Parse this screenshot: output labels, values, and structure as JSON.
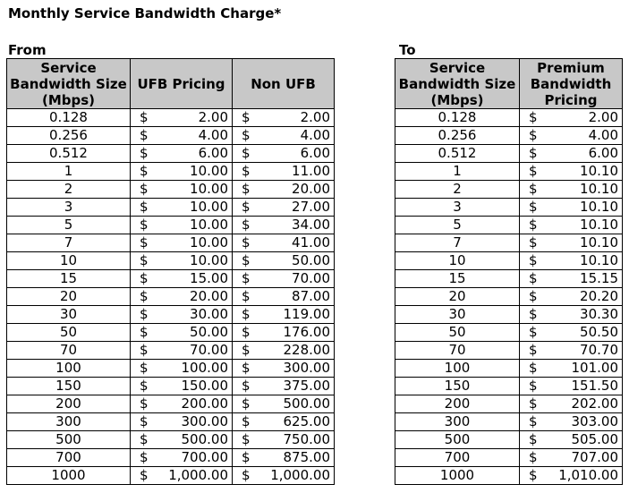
{
  "title": "Monthly Service Bandwidth Charge*",
  "currency_symbol": "$",
  "from": {
    "label": "From",
    "headers": [
      "Service Bandwidth Size (Mbps)",
      "UFB Pricing",
      "Non UFB"
    ],
    "rows": [
      [
        "0.128",
        "2.00",
        "2.00"
      ],
      [
        "0.256",
        "4.00",
        "4.00"
      ],
      [
        "0.512",
        "6.00",
        "6.00"
      ],
      [
        "1",
        "10.00",
        "11.00"
      ],
      [
        "2",
        "10.00",
        "20.00"
      ],
      [
        "3",
        "10.00",
        "27.00"
      ],
      [
        "5",
        "10.00",
        "34.00"
      ],
      [
        "7",
        "10.00",
        "41.00"
      ],
      [
        "10",
        "10.00",
        "50.00"
      ],
      [
        "15",
        "15.00",
        "70.00"
      ],
      [
        "20",
        "20.00",
        "87.00"
      ],
      [
        "30",
        "30.00",
        "119.00"
      ],
      [
        "50",
        "50.00",
        "176.00"
      ],
      [
        "70",
        "70.00",
        "228.00"
      ],
      [
        "100",
        "100.00",
        "300.00"
      ],
      [
        "150",
        "150.00",
        "375.00"
      ],
      [
        "200",
        "200.00",
        "500.00"
      ],
      [
        "300",
        "300.00",
        "625.00"
      ],
      [
        "500",
        "500.00",
        "750.00"
      ],
      [
        "700",
        "700.00",
        "875.00"
      ],
      [
        "1000",
        "1,000.00",
        "1,000.00"
      ]
    ]
  },
  "to": {
    "label": "To",
    "headers": [
      "Service Bandwidth Size (Mbps)",
      "Premium Bandwidth Pricing"
    ],
    "rows": [
      [
        "0.128",
        "2.00"
      ],
      [
        "0.256",
        "4.00"
      ],
      [
        "0.512",
        "6.00"
      ],
      [
        "1",
        "10.10"
      ],
      [
        "2",
        "10.10"
      ],
      [
        "3",
        "10.10"
      ],
      [
        "5",
        "10.10"
      ],
      [
        "7",
        "10.10"
      ],
      [
        "10",
        "10.10"
      ],
      [
        "15",
        "15.15"
      ],
      [
        "20",
        "20.20"
      ],
      [
        "30",
        "30.30"
      ],
      [
        "50",
        "50.50"
      ],
      [
        "70",
        "70.70"
      ],
      [
        "100",
        "101.00"
      ],
      [
        "150",
        "151.50"
      ],
      [
        "200",
        "202.00"
      ],
      [
        "300",
        "303.00"
      ],
      [
        "500",
        "505.00"
      ],
      [
        "700",
        "707.00"
      ],
      [
        "1000",
        "1,010.00"
      ]
    ]
  }
}
